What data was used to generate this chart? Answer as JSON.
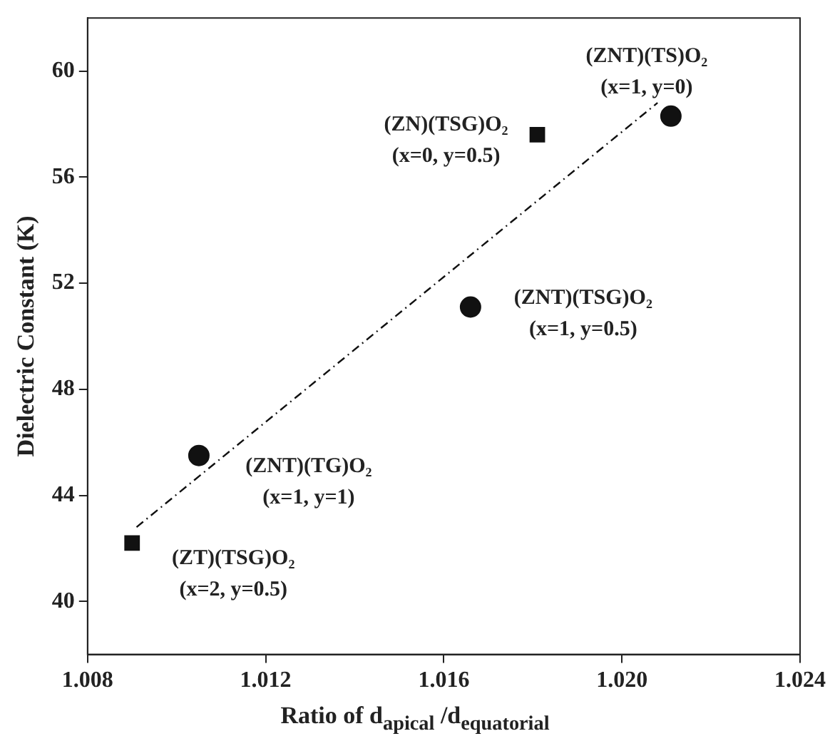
{
  "chart_data": {
    "type": "scatter",
    "xlabel": "Ratio of d$_{apical}$ /d$_{equatorial}$",
    "ylabel": "Dielectric Constant (K)",
    "xlim": [
      1.008,
      1.024
    ],
    "xticks": [
      1.008,
      1.012,
      1.016,
      {
        "value": 1.02,
        "label": "1.020"
      },
      1.024
    ],
    "ylim": [
      38,
      62
    ],
    "yticks": [
      40,
      44,
      48,
      52,
      56,
      60
    ],
    "grid": false,
    "legend": false,
    "series": [
      {
        "color": "#111111",
        "marker": "circle",
        "x": [
          1.0211,
          1.0166,
          1.0105
        ],
        "values": [
          58.3,
          51.1,
          45.5
        ]
      },
      {
        "color": "#111111",
        "marker": "square",
        "x": [
          1.0181,
          1.009
        ],
        "values": [
          57.6,
          42.2
        ]
      },
      {
        "type": "line",
        "color": "#111111",
        "line_style": "dashed",
        "x": [
          1.0091,
          1.0208
        ],
        "values": [
          42.8,
          58.8
        ]
      }
    ],
    "annotations": [
      {
        "text": "(ZNT)(TS)O₂\n(x=1, y=0)",
        "x": 1.0211,
        "y": 58.3
      },
      {
        "text": "(ZN)(TSG)O₂\n(x=0, y=0.5)",
        "x": 1.0181,
        "y": 57.6
      },
      {
        "text": "(ZNT)(TSG)O₂\n(x=1, y=0.5)",
        "x": 1.0166,
        "y": 51.1
      },
      {
        "text": "(ZNT)(TG)O₂\n(x=1, y=1)",
        "x": 1.0105,
        "y": 45.5
      },
      {
        "text": "(ZT)(TSG)O₂\n(x=2, y=0.5)",
        "x": 1.009,
        "y": 42.2
      }
    ]
  }
}
